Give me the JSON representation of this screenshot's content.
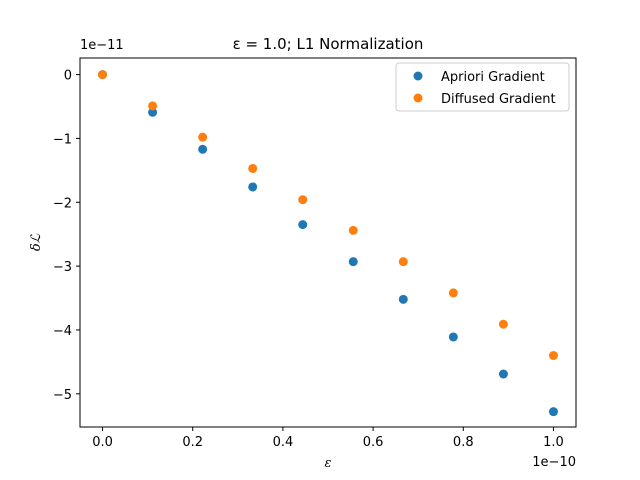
{
  "chart_data": {
    "type": "scatter",
    "title": "ε = 1.0; L1 Normalization",
    "xlabel": "ε",
    "ylabel": "δℒ",
    "x_offset_label": "1e−10",
    "y_offset_label": "1e−11",
    "x_ticks": [
      0.0,
      0.2,
      0.4,
      0.6,
      0.8,
      1.0
    ],
    "x_tick_labels": [
      "0.0",
      "0.2",
      "0.4",
      "0.6",
      "0.8",
      "1.0"
    ],
    "y_ticks": [
      0,
      -1,
      -2,
      -3,
      -4,
      -5
    ],
    "y_tick_labels": [
      "0",
      "−1",
      "−2",
      "−3",
      "−4",
      "−5"
    ],
    "xlim": [
      -0.05,
      1.05
    ],
    "ylim": [
      -5.52,
      0.26
    ],
    "grid": false,
    "legend_position": "top-right",
    "x": [
      0.0,
      0.111,
      0.222,
      0.333,
      0.444,
      0.556,
      0.667,
      0.778,
      0.889,
      1.0
    ],
    "series": [
      {
        "name": "Apriori Gradient",
        "color": "#1f77b4",
        "values": [
          0.0,
          -0.59,
          -1.17,
          -1.76,
          -2.35,
          -2.93,
          -3.52,
          -4.11,
          -4.69,
          -5.28
        ]
      },
      {
        "name": "Diffused Gradient",
        "color": "#ff7f0e",
        "values": [
          0.0,
          -0.49,
          -0.98,
          -1.47,
          -1.96,
          -2.44,
          -2.93,
          -3.42,
          -3.91,
          -4.4
        ]
      }
    ]
  }
}
